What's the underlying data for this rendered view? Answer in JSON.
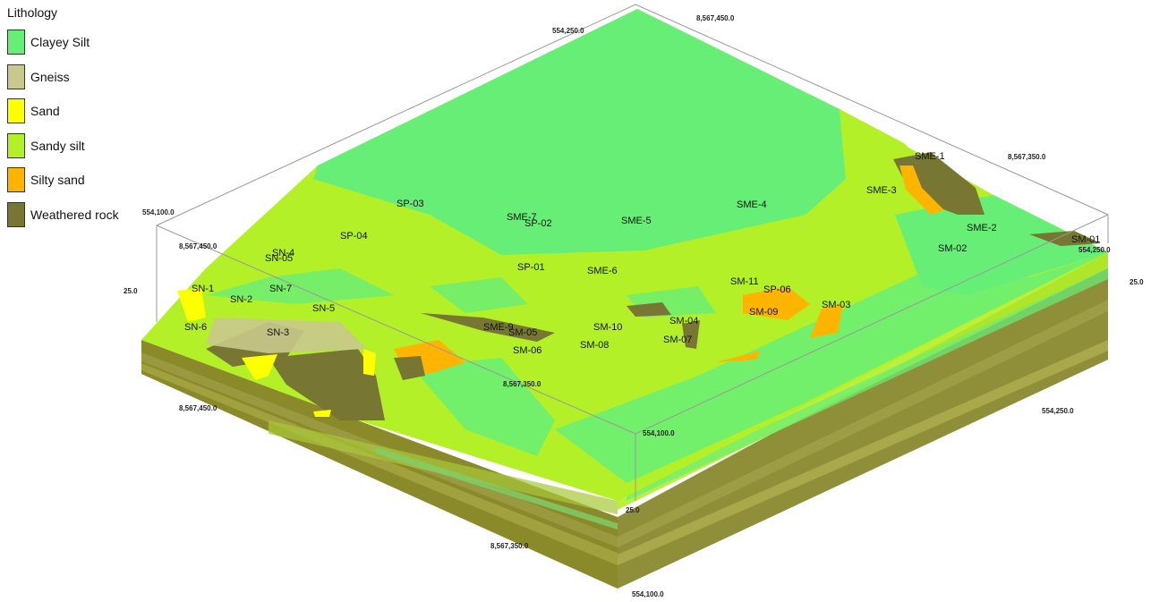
{
  "legend": {
    "title": "Lithology",
    "items": [
      {
        "label": "Clayey Silt",
        "color": "#66ee77"
      },
      {
        "label": "Gneiss",
        "color": "#c8c88c"
      },
      {
        "label": "Sand",
        "color": "#ffff00"
      },
      {
        "label": "Sandy silt",
        "color": "#b4f028"
      },
      {
        "label": "Silty sand",
        "color": "#ffb400"
      },
      {
        "label": "Weathered rock",
        "color": "#777733"
      }
    ]
  },
  "wells": [
    "SME-1",
    "SME-3",
    "SME-2",
    "SM-01",
    "SM-02",
    "SME-4",
    "SME-5",
    "SME-7",
    "SP-02",
    "SP-03",
    "SP-04",
    "SN-4",
    "SN-05",
    "SP-01",
    "SME-6",
    "SM-11",
    "SP-06",
    "SM-09",
    "SM-03",
    "SN-1",
    "SN-7",
    "SN-2",
    "SN-5",
    "SN-6",
    "SN-3",
    "SME-9",
    "SM-05",
    "SM-06",
    "SM-10",
    "SM-08",
    "SM-04",
    "SM-07"
  ],
  "axis_labels": [
    "8,567,450.0",
    "554,250.0",
    "8,567,350.0",
    "554,100.0",
    "8,567,450.0",
    "25.0",
    "554,250.0",
    "25.0",
    "8,567,450.0",
    "8,567,350.0",
    "554,100.0",
    "554,250.0",
    "25.0",
    "8,567,350.0",
    "554,100.0"
  ]
}
